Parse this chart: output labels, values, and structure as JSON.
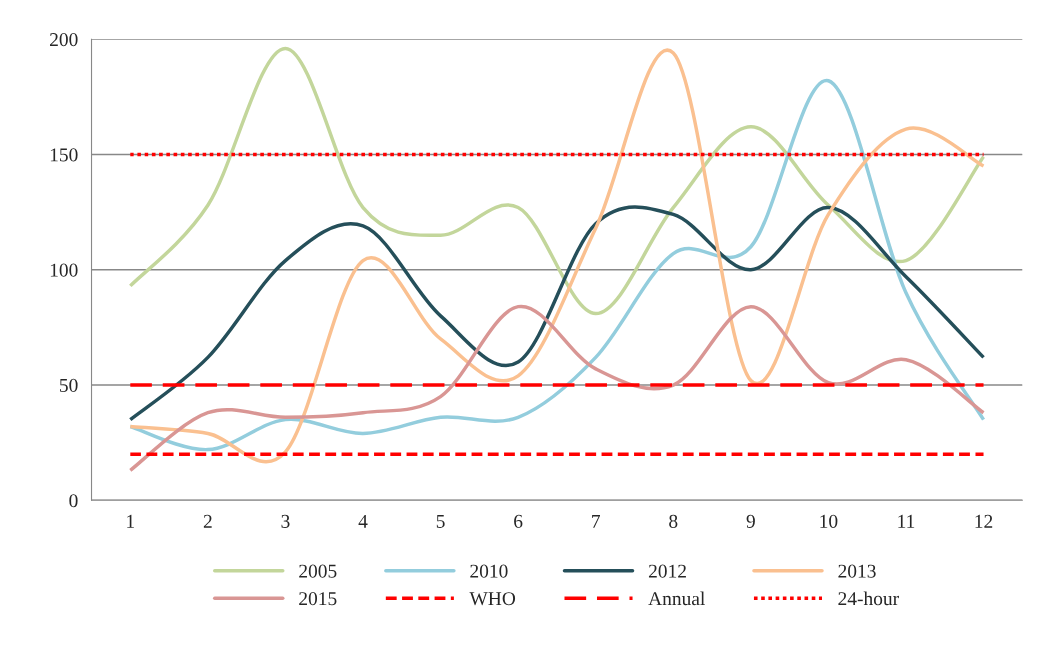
{
  "chart_data": {
    "type": "line",
    "categories": [
      "1",
      "2",
      "3",
      "4",
      "5",
      "6",
      "7",
      "8",
      "9",
      "10",
      "11",
      "12"
    ],
    "series": [
      {
        "name": "2005",
        "color": "#c3d69b",
        "values": [
          93,
          128,
          196,
          127,
          115,
          127,
          81,
          127,
          162,
          128,
          104,
          149
        ]
      },
      {
        "name": "2010",
        "color": "#93cddd",
        "values": [
          32,
          22,
          35,
          29,
          36,
          36,
          62,
          107,
          110,
          182,
          90,
          35
        ]
      },
      {
        "name": "2012",
        "color": "#254f5a",
        "values": [
          35,
          62,
          104,
          119,
          80,
          60,
          120,
          124,
          100,
          127,
          97,
          62
        ]
      },
      {
        "name": "2013",
        "color": "#fac090",
        "values": [
          32,
          29,
          21,
          104,
          70,
          54,
          118,
          194,
          52,
          124,
          161,
          145
        ]
      },
      {
        "name": "2015",
        "color": "#d99694",
        "values": [
          13,
          38,
          36,
          38,
          45,
          84,
          57,
          50,
          84,
          51,
          61,
          38
        ]
      },
      {
        "name": "WHO",
        "color": "#ff0000",
        "line_style": "dashed",
        "values": [
          20,
          20,
          20,
          20,
          20,
          20,
          20,
          20,
          20,
          20,
          20,
          20
        ]
      },
      {
        "name": "Annual",
        "color": "#ff0000",
        "line_style": "longdash",
        "values": [
          50,
          50,
          50,
          50,
          50,
          50,
          50,
          50,
          50,
          50,
          50,
          50
        ]
      },
      {
        "name": "24-hour",
        "color": "#ff0000",
        "line_style": "dotted",
        "values": [
          150,
          150,
          150,
          150,
          150,
          150,
          150,
          150,
          150,
          150,
          150,
          150
        ]
      }
    ],
    "ylim": [
      0,
      200
    ],
    "yticks": [
      0,
      50,
      100,
      150,
      200
    ],
    "grid": "y",
    "legend": "bottom",
    "marker": "none"
  }
}
